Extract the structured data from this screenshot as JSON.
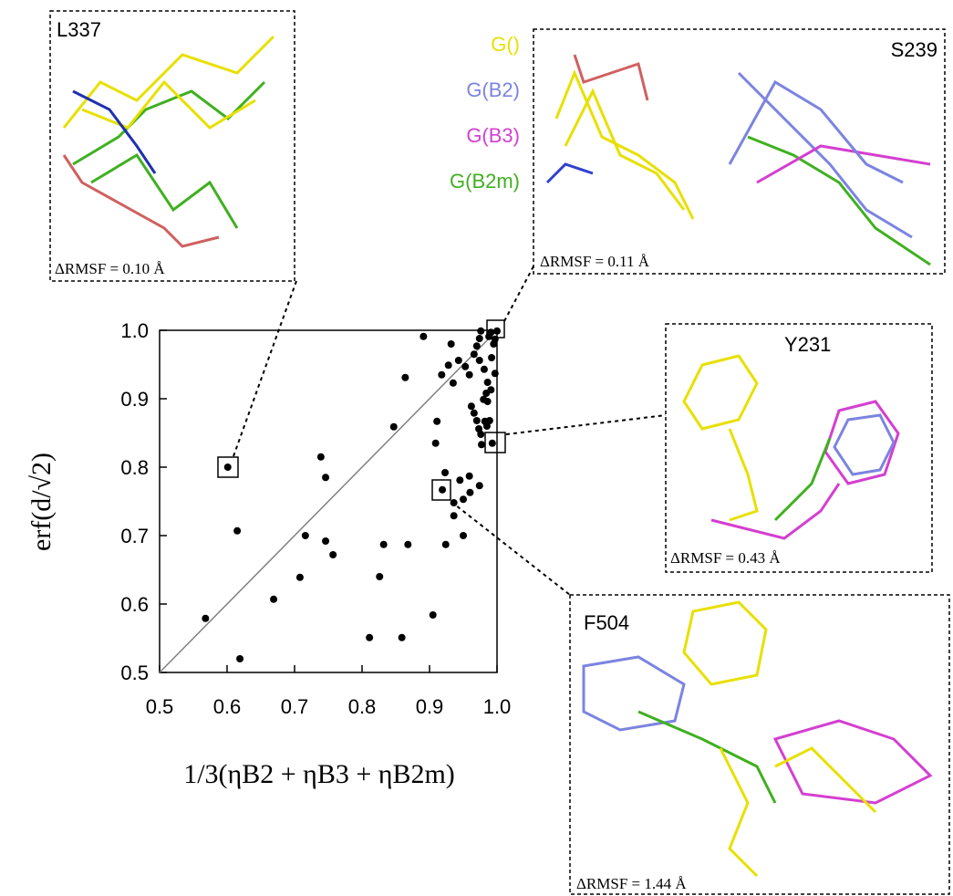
{
  "chart_data": {
    "type": "scatter",
    "x_label": "1/3(ηB2 + ηB3 + ηB2m)",
    "y_label": "erf(d/√2)",
    "xlim": [
      0.5,
      1.0
    ],
    "ylim": [
      0.5,
      1.0
    ],
    "xticks": [
      0.5,
      0.6,
      0.7,
      0.8,
      0.9,
      {
        "value": 1.0,
        "label": "1.0"
      }
    ],
    "yticks": [
      0.5,
      0.6,
      0.7,
      0.8,
      0.9,
      {
        "value": 1.0,
        "label": "1.0"
      }
    ],
    "color": "#000000",
    "diagonal_color": "#808080",
    "x": [
      0.601,
      0.568,
      0.619,
      0.615,
      0.669,
      0.708,
      0.716,
      0.739,
      0.746,
      0.746,
      0.757,
      0.811,
      0.826,
      0.832,
      0.868,
      0.847,
      0.864,
      0.891,
      0.859,
      0.905,
      0.911,
      0.909,
      0.919,
      0.923,
      0.924,
      0.932,
      0.918,
      0.928,
      0.935,
      0.936,
      0.943,
      0.945,
      0.95,
      0.953,
      0.959,
      0.95,
      0.96,
      0.959,
      0.966,
      0.97,
      0.974,
      0.974,
      0.976,
      0.962,
      0.966,
      0.97,
      0.973,
      0.976,
      0.977,
      0.974,
      0.936,
      0.981,
      0.984,
      0.986,
      0.989,
      0.993,
      0.98,
      0.991,
      0.995,
      0.997,
      0.982,
      0.985,
      0.991,
      0.986,
      1.0,
      0.997,
      0.988,
      0.992
    ],
    "y": [
      0.8,
      0.579,
      0.52,
      0.707,
      0.607,
      0.639,
      0.7,
      0.815,
      0.785,
      0.692,
      0.672,
      0.551,
      0.64,
      0.687,
      0.687,
      0.859,
      0.931,
      0.991,
      0.551,
      0.584,
      0.867,
      0.835,
      0.767,
      0.792,
      0.687,
      0.98,
      0.935,
      0.949,
      0.923,
      0.748,
      0.956,
      0.781,
      0.7,
      0.947,
      0.935,
      0.753,
      0.763,
      0.787,
      0.965,
      0.977,
      0.956,
      0.988,
      0.999,
      0.889,
      0.879,
      0.868,
      0.856,
      0.848,
      0.833,
      0.773,
      0.729,
      0.943,
      0.908,
      0.924,
      0.868,
      0.835,
      0.899,
      0.997,
      0.98,
      0.937,
      0.867,
      0.86,
      0.913,
      0.896,
      0.999,
      0.987,
      0.991,
      0.96
    ],
    "legend": [
      {
        "name": "G()",
        "color": "#e8e000"
      },
      {
        "name": "G(B2)",
        "color": "#7b84e0"
      },
      {
        "name": "G(B3)",
        "color": "#d43fd0"
      },
      {
        "name": "G(B2m)",
        "color": "#3fb020"
      }
    ],
    "insets": [
      {
        "label": "L337",
        "rmsf": "ΔRMSF = 0.10 Å"
      },
      {
        "label": "S239",
        "rmsf": "ΔRMSF = 0.11 Å"
      },
      {
        "label": "Y231",
        "rmsf": "ΔRMSF = 0.43 Å"
      },
      {
        "label": "F504",
        "rmsf": "ΔRMSF = 1.44 Å"
      }
    ]
  }
}
